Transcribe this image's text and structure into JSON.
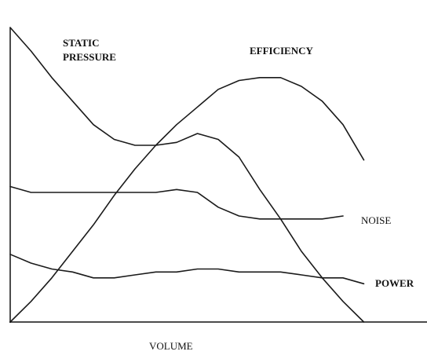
{
  "chart_data": {
    "type": "line",
    "x_label": "VOLUME",
    "x": [
      0,
      5,
      10,
      15,
      20,
      25,
      30,
      35,
      40,
      45,
      50,
      55,
      60,
      65,
      70,
      75,
      80,
      85,
      90,
      95,
      100
    ],
    "xlim": [
      0,
      100
    ],
    "ylim": [
      0,
      100
    ],
    "series": [
      {
        "name": "STATIC PRESSURE",
        "color": "#1a1a1a",
        "values": [
          100,
          92,
          83,
          75,
          67,
          62,
          60,
          60,
          61,
          64,
          62,
          56,
          45,
          35,
          24,
          15,
          7,
          0,
          null,
          null,
          null
        ]
      },
      {
        "name": "EFFICIENCY",
        "color": "#1a1a1a",
        "values": [
          0,
          7,
          15,
          24,
          33,
          43,
          52,
          60,
          67,
          73,
          79,
          82,
          83,
          83,
          80,
          75,
          67,
          55,
          null,
          null,
          null
        ]
      },
      {
        "name": "NOISE",
        "color": "#1a1a1a",
        "values": [
          46,
          44,
          44,
          44,
          44,
          44,
          44,
          44,
          45,
          44,
          39,
          36,
          35,
          35,
          35,
          35,
          36,
          null,
          null,
          null,
          null
        ]
      },
      {
        "name": "POWER",
        "color": "#1a1a1a",
        "values": [
          23,
          20,
          18,
          17,
          15,
          15,
          16,
          17,
          17,
          18,
          18,
          17,
          17,
          17,
          16,
          15,
          15,
          13,
          null,
          null,
          null
        ]
      }
    ]
  }
}
